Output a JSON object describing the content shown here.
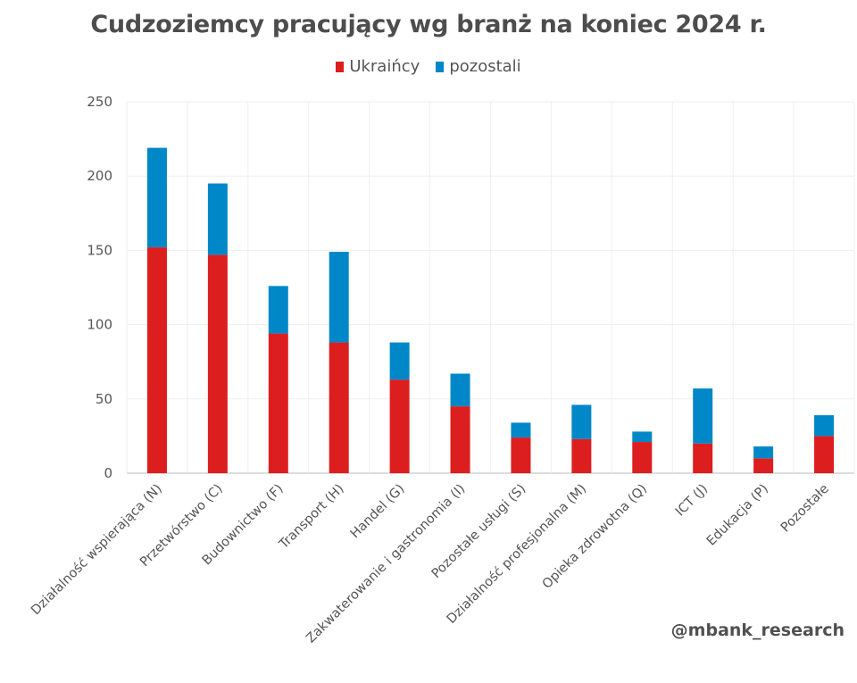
{
  "chart_data": {
    "type": "bar",
    "stacked": true,
    "title": "Cudzoziemcy pracujący wg branż na koniec 2024 r.",
    "xlabel": "",
    "ylabel": "",
    "ylim": [
      0,
      250
    ],
    "yticks": [
      0,
      50,
      100,
      150,
      200,
      250
    ],
    "grid": true,
    "legend_position": "top-center",
    "categories": [
      "Działalność wspierająca (N)",
      "Przetwórstwo (C)",
      "Budownictwo (F)",
      "Transport (H)",
      "Handel (G)",
      "Zakwaterowanie i gastronomia (I)",
      "Pozostałe usługi (S)",
      "Działalność profesjonalna (M)",
      "Opieka zdrowotna (Q)",
      "ICT (J)",
      "Edukacja (P)",
      "Pozostałe"
    ],
    "series": [
      {
        "name": "Ukraińcy",
        "color": "#dc1e1e",
        "values": [
          152,
          147,
          94,
          88,
          63,
          45,
          24,
          23,
          21,
          20,
          10,
          25
        ]
      },
      {
        "name": "pozostali",
        "color": "#0087c8",
        "values": [
          67,
          48,
          32,
          61,
          25,
          22,
          10,
          23,
          7,
          37,
          8,
          14
        ]
      }
    ]
  },
  "watermark": "@mbank_research"
}
